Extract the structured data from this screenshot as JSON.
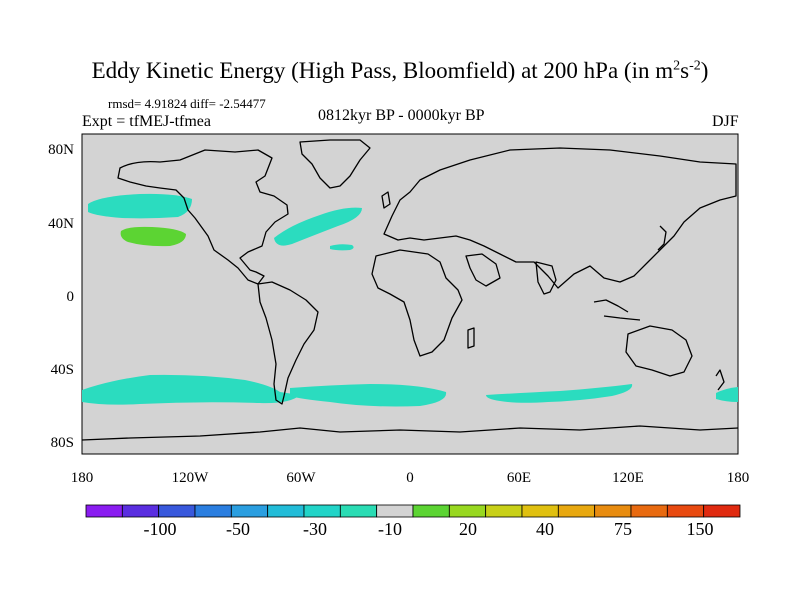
{
  "title": {
    "main": "Eddy Kinetic Energy (High Pass, Bloomfield) at 200 hPa (in m",
    "sup1": "2",
    "mid": "s",
    "sup2": "-2",
    "end": ")"
  },
  "stats": {
    "rmsd_text": "rmsd= 4.91824 diff= -2.54477"
  },
  "expt": "Expt = tfMEJ-tfmea",
  "period": "0812kyr BP - 0000kyr BP",
  "season": "DJF",
  "axes": {
    "lat_labels": [
      "80N",
      "40N",
      "0",
      "40S",
      "80S"
    ],
    "lon_labels": [
      "180",
      "120W",
      "60W",
      "0",
      "60E",
      "120E",
      "180"
    ]
  },
  "colors": {
    "land_ocean_neutral": "#d3d3d3",
    "coast": "#000000",
    "anomaly_neg_small": "#2bdcbf",
    "anomaly_pos_small": "#5cd433"
  },
  "colorbar": {
    "colors": [
      "#8a1cf0",
      "#5a2ee0",
      "#3858dc",
      "#2a7ee0",
      "#2a9ee0",
      "#22bcd8",
      "#22d4c8",
      "#2adcb4",
      "#d3d3d3",
      "#5cd433",
      "#98d820",
      "#c8d018",
      "#e0c010",
      "#e8a810",
      "#e88c10",
      "#e86a10",
      "#e84a10",
      "#e02a10"
    ],
    "labels": [
      "-100",
      "-50",
      "-30",
      "-10",
      "20",
      "40",
      "75",
      "150"
    ]
  }
}
